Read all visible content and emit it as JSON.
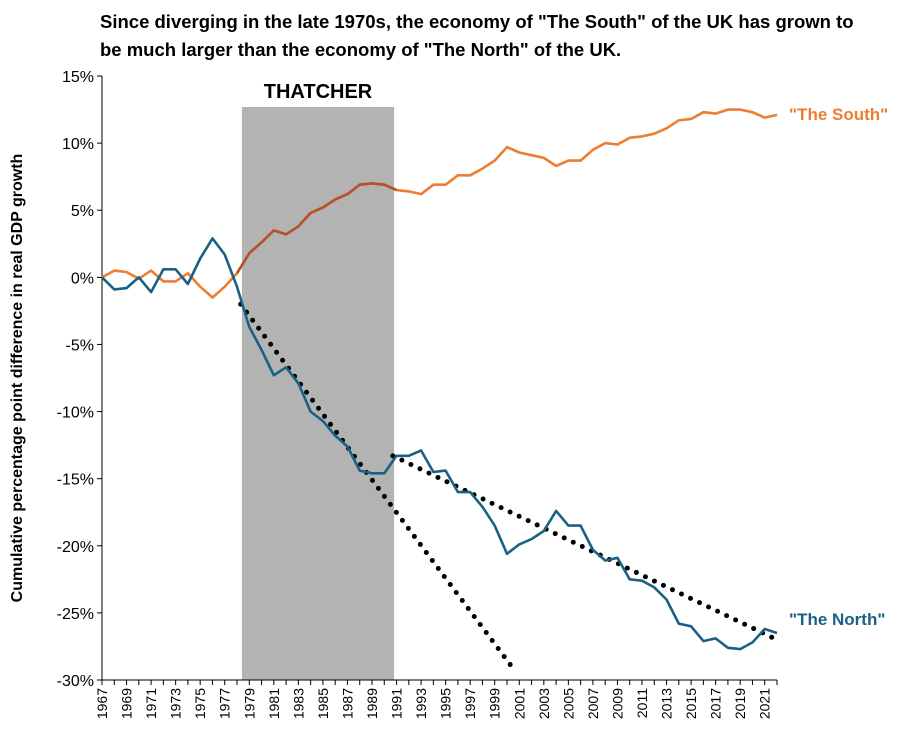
{
  "chart_data": {
    "type": "line",
    "title": "Since diverging in the late 1970s, the economy of \"The South\" of the UK has grown to be much larger than the economy of \"The North\" of the UK.",
    "xlabel": "",
    "ylabel": "Cumulative percentage point difference in real GDP growth",
    "ylim": [
      -30,
      15
    ],
    "yticks": [
      15,
      10,
      5,
      0,
      -5,
      -10,
      -15,
      -20,
      -25,
      -30
    ],
    "ytick_labels": [
      "15%",
      "10%",
      "5%",
      "0%",
      "-5%",
      "-10%",
      "-15%",
      "-20%",
      "-25%",
      "-30%"
    ],
    "xlim": [
      1967,
      2022
    ],
    "xtick_labels": [
      "1967",
      "1969",
      "1971",
      "1973",
      "1975",
      "1977",
      "1979",
      "1981",
      "1983",
      "1985",
      "1987",
      "1989",
      "1991",
      "1993",
      "1995",
      "1997",
      "1999",
      "2001",
      "2003",
      "2005",
      "2007",
      "2009",
      "2011",
      "2013",
      "2015",
      "2017",
      "2019",
      "2021"
    ],
    "grid": false,
    "shaded_region": {
      "label": "THATCHER",
      "x_start": 1978.4,
      "x_end": 1990.8,
      "color": "#b3b3b3"
    },
    "series": [
      {
        "name": "\"The South\"",
        "color": "#ED7D31",
        "color_thatcher": "#B4522B",
        "x": [
          1967,
          1968,
          1969,
          1970,
          1971,
          1972,
          1973,
          1974,
          1975,
          1976,
          1977,
          1978,
          1979,
          1980,
          1981,
          1982,
          1983,
          1984,
          1985,
          1986,
          1987,
          1988,
          1989,
          1990,
          1991,
          1992,
          1993,
          1994,
          1995,
          1996,
          1997,
          1998,
          1999,
          2000,
          2001,
          2002,
          2003,
          2004,
          2005,
          2006,
          2007,
          2008,
          2009,
          2010,
          2011,
          2012,
          2013,
          2014,
          2015,
          2016,
          2017,
          2018,
          2019,
          2020,
          2021,
          2022
        ],
        "y": [
          0,
          0.5,
          0.4,
          -0.1,
          0.5,
          -0.3,
          -0.3,
          0.3,
          -0.7,
          -1.5,
          -0.7,
          0.3,
          1.8,
          2.6,
          3.5,
          3.2,
          3.8,
          4.8,
          5.2,
          5.8,
          6.2,
          6.9,
          7.0,
          6.9,
          6.5,
          6.4,
          6.2,
          6.9,
          6.9,
          7.6,
          7.6,
          8.1,
          8.7,
          9.7,
          9.3,
          9.1,
          8.9,
          8.3,
          8.7,
          8.7,
          9.5,
          10.0,
          9.9,
          10.4,
          10.5,
          10.7,
          11.1,
          11.7,
          11.8,
          12.3,
          12.2,
          12.5,
          12.5,
          12.3,
          11.9,
          12.1
        ]
      },
      {
        "name": "\"The North\"",
        "color": "#1B6185",
        "x": [
          1967,
          1968,
          1969,
          1970,
          1971,
          1972,
          1973,
          1974,
          1975,
          1976,
          1977,
          1978,
          1979,
          1980,
          1981,
          1982,
          1983,
          1984,
          1985,
          1986,
          1987,
          1988,
          1989,
          1990,
          1991,
          1992,
          1993,
          1994,
          1995,
          1996,
          1997,
          1998,
          1999,
          2000,
          2001,
          2002,
          2003,
          2004,
          2005,
          2006,
          2007,
          2008,
          2009,
          2010,
          2011,
          2012,
          2013,
          2014,
          2015,
          2016,
          2017,
          2018,
          2019,
          2020,
          2021,
          2022
        ],
        "y": [
          0,
          -0.9,
          -0.8,
          0,
          -1.1,
          0.6,
          0.6,
          -0.5,
          1.4,
          2.9,
          1.7,
          -0.7,
          -3.7,
          -5.4,
          -7.3,
          -6.7,
          -7.9,
          -10.0,
          -10.7,
          -11.8,
          -12.6,
          -14.4,
          -14.6,
          -14.6,
          -13.3,
          -13.3,
          -12.9,
          -14.5,
          -14.4,
          -16.0,
          -16.0,
          -17.1,
          -18.5,
          -20.6,
          -19.9,
          -19.5,
          -18.9,
          -17.4,
          -18.5,
          -18.5,
          -20.3,
          -21.1,
          -20.9,
          -22.5,
          -22.6,
          -23.1,
          -24.0,
          -25.8,
          -26.0,
          -27.1,
          -26.9,
          -27.6,
          -27.7,
          -27.2,
          -26.2,
          -26.5
        ]
      }
    ],
    "trendlines": [
      {
        "style": "dotted",
        "color": "#000000",
        "x": [
          1978.3,
          2000.3
        ],
        "y": [
          -2.0,
          -28.9
        ]
      },
      {
        "style": "dotted",
        "color": "#000000",
        "x": [
          1990.7,
          2022.0
        ],
        "y": [
          -13.3,
          -27.0
        ]
      }
    ]
  }
}
